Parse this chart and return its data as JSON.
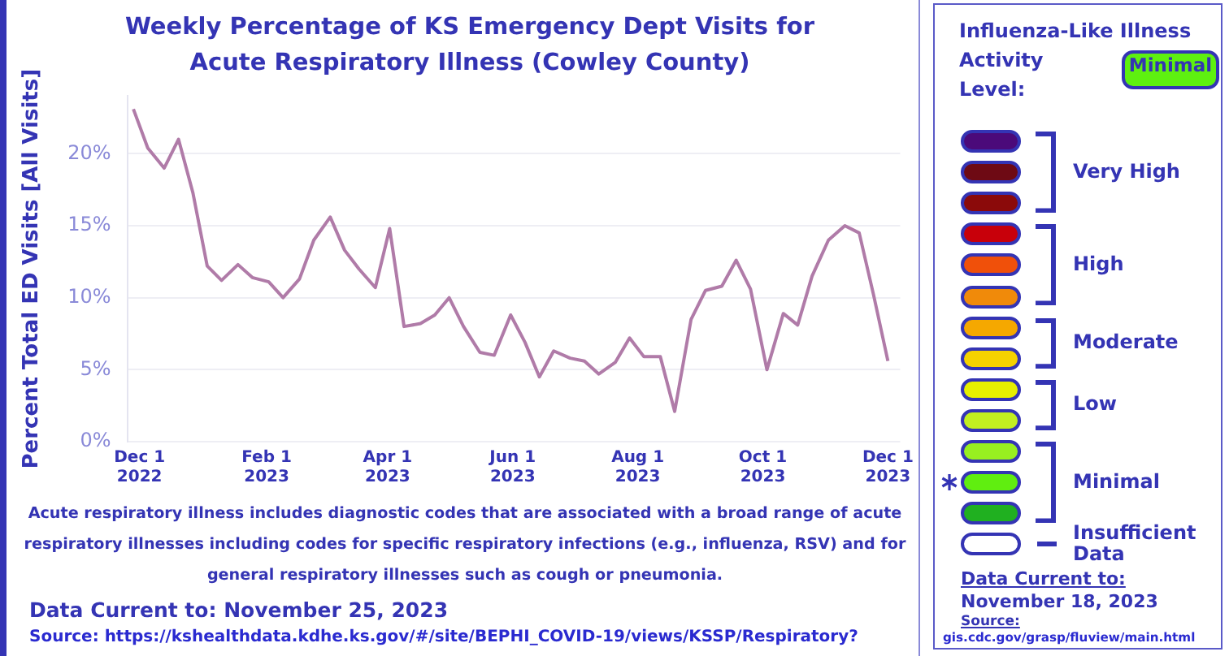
{
  "chart_data": [
    {
      "type": "line",
      "title": "Weekly Percentage of KS Emergency Dept Visits for Acute Respiratory Illness (Cowley County)",
      "ylabel": "Percent Total ED Visits [All Visits]",
      "x": [
        "2022-11-28",
        "2022-12-05",
        "2022-12-13",
        "2022-12-20",
        "2022-12-27",
        "2023-01-03",
        "2023-01-10",
        "2023-01-18",
        "2023-01-25",
        "2023-02-02",
        "2023-02-09",
        "2023-02-17",
        "2023-02-24",
        "2023-03-04",
        "2023-03-11",
        "2023-03-18",
        "2023-03-26",
        "2023-04-02",
        "2023-04-09",
        "2023-04-17",
        "2023-04-24",
        "2023-05-01",
        "2023-05-08",
        "2023-05-16",
        "2023-05-23",
        "2023-05-31",
        "2023-06-07",
        "2023-06-14",
        "2023-06-21",
        "2023-06-29",
        "2023-07-06",
        "2023-07-13",
        "2023-07-21",
        "2023-07-28",
        "2023-08-04",
        "2023-08-12",
        "2023-08-19",
        "2023-08-27",
        "2023-09-03",
        "2023-09-11",
        "2023-09-18",
        "2023-09-25",
        "2023-10-03",
        "2023-10-11",
        "2023-10-18",
        "2023-10-25",
        "2023-11-02",
        "2023-11-10",
        "2023-11-17",
        "2023-11-24",
        "2023-12-01"
      ],
      "series": [
        {
          "color": "#b07ba8",
          "values": [
            23.1,
            20.4,
            19.0,
            21.0,
            17.3,
            12.2,
            11.2,
            12.3,
            11.4,
            11.1,
            10.0,
            11.3,
            14.0,
            15.6,
            13.3,
            12.0,
            10.7,
            14.8,
            8.0,
            8.2,
            8.8,
            10.0,
            8.0,
            6.2,
            6.0,
            8.8,
            6.9,
            4.5,
            6.3,
            5.8,
            5.6,
            4.7,
            5.5,
            7.2,
            5.9,
            5.9,
            2.1,
            8.5,
            10.5,
            10.8,
            12.6,
            10.6,
            5.0,
            8.9,
            8.1,
            11.5,
            14.0,
            15.0,
            14.5,
            10.2,
            5.6
          ]
        }
      ],
      "xlim": [
        "2022-11-25",
        "2023-12-07"
      ],
      "xticks": [
        {
          "value": "2022-12-01",
          "label": "Dec 1 2022"
        },
        {
          "value": "2023-02-01",
          "label": "Feb 1 2023"
        },
        {
          "value": "2023-04-01",
          "label": "Apr 1 2023"
        },
        {
          "value": "2023-06-01",
          "label": "Jun 1 2023"
        },
        {
          "value": "2023-08-01",
          "label": "Aug 1 2023"
        },
        {
          "value": "2023-10-01",
          "label": "Oct 1 2023"
        },
        {
          "value": "2023-12-01",
          "label": "Dec 1 2023"
        }
      ],
      "ylim": [
        0,
        24
      ],
      "yticks": [
        {
          "value": 0,
          "label": "0%"
        },
        {
          "value": 5,
          "label": "5%"
        },
        {
          "value": 10,
          "label": "10%"
        },
        {
          "value": 15,
          "label": "15%"
        },
        {
          "value": 20,
          "label": "20%"
        }
      ],
      "grid": "y",
      "legend": false,
      "annotations": [
        "Acute respiratory illness includes diagnostic codes that are associated with a broad range of acute respiratory illnesses including codes for specific respiratory infections (e.g., influenza, RSV) and for general respiratory illnesses such as cough or pneumonia.",
        "Data Current to: November 25, 2023",
        "Source: https://kshealthdata.kdhe.ks.gov/#/site/BEPHI_COVID-19/views/KSSP/Respiratory?"
      ]
    },
    {
      "type": "other",
      "title": "Influenza-Like Illness Activity Level:",
      "categories": [
        "Very High",
        "High",
        "Moderate",
        "Low",
        "Minimal",
        "Insufficient Data"
      ],
      "annotations": [
        "Minimal",
        "Data Current to:",
        "November 18, 2023",
        "Source:",
        "gis.cdc.gov/grasp/fluview/main.html"
      ]
    }
  ]
}
